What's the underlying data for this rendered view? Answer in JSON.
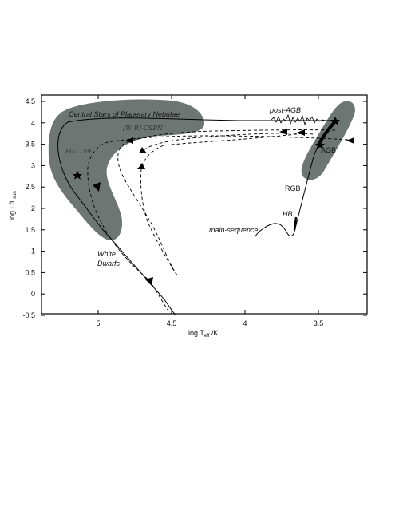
{
  "axes": {
    "x_label_main": "log T",
    "x_label_sub": "eff",
    "x_label_unit": " /K",
    "y_label_main": "log L/L",
    "y_label_sub": "sun",
    "x_ticks": [
      {
        "value": 5,
        "label": "5"
      },
      {
        "value": 4.5,
        "label": "4.5"
      },
      {
        "value": 4,
        "label": "4"
      },
      {
        "value": 3.5,
        "label": "3.5"
      }
    ],
    "y_ticks": [
      {
        "value": 4.5,
        "label": "4.5"
      },
      {
        "value": 4,
        "label": "4"
      },
      {
        "value": 3.5,
        "label": "3.5"
      },
      {
        "value": 3,
        "label": "3"
      },
      {
        "value": 2.5,
        "label": "2.5"
      },
      {
        "value": 2,
        "label": "2"
      },
      {
        "value": 1.5,
        "label": "1.5"
      },
      {
        "value": 1,
        "label": "1"
      },
      {
        "value": 0.5,
        "label": "0.5"
      },
      {
        "value": 0,
        "label": "0"
      },
      {
        "value": -0.5,
        "label": "-0.5"
      }
    ]
  },
  "labels": {
    "cspn": "Central Stars of Planetary Nebulae",
    "wr": "[W R]-CSPN",
    "pg1159": "PG1159",
    "white": "White",
    "dwarfs": "Dwarfs",
    "post_agb": "post-AGB",
    "agb": "AGB",
    "rgb": "RGB",
    "hb": "HB",
    "main_sequence": "main-sequence"
  },
  "colors": {
    "region_fill": "#6e7674",
    "line": "#000000"
  }
}
